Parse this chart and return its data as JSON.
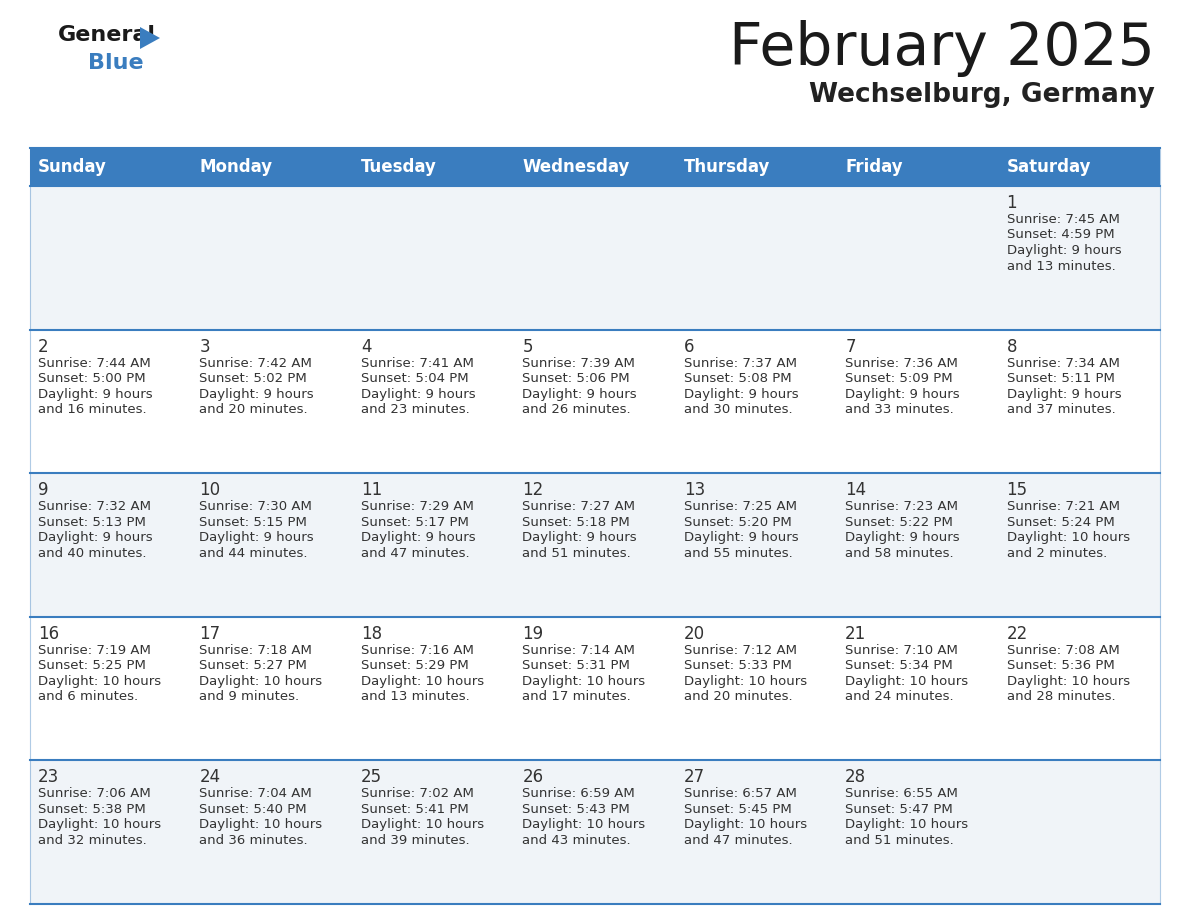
{
  "title": "February 2025",
  "subtitle": "Wechselburg, Germany",
  "header_color": "#3a7dbf",
  "header_text_color": "#ffffff",
  "cell_bg_even": "#f0f4f8",
  "cell_bg_odd": "#ffffff",
  "day_headers": [
    "Sunday",
    "Monday",
    "Tuesday",
    "Wednesday",
    "Thursday",
    "Friday",
    "Saturday"
  ],
  "title_color": "#1a1a1a",
  "subtitle_color": "#222222",
  "line_color": "#3a7dbf",
  "text_color": "#333333",
  "days": [
    {
      "day": 1,
      "col": 6,
      "row": 0,
      "sunrise": "7:45 AM",
      "sunset": "4:59 PM",
      "daylight": "9 hours and 13 minutes."
    },
    {
      "day": 2,
      "col": 0,
      "row": 1,
      "sunrise": "7:44 AM",
      "sunset": "5:00 PM",
      "daylight": "9 hours and 16 minutes."
    },
    {
      "day": 3,
      "col": 1,
      "row": 1,
      "sunrise": "7:42 AM",
      "sunset": "5:02 PM",
      "daylight": "9 hours and 20 minutes."
    },
    {
      "day": 4,
      "col": 2,
      "row": 1,
      "sunrise": "7:41 AM",
      "sunset": "5:04 PM",
      "daylight": "9 hours and 23 minutes."
    },
    {
      "day": 5,
      "col": 3,
      "row": 1,
      "sunrise": "7:39 AM",
      "sunset": "5:06 PM",
      "daylight": "9 hours and 26 minutes."
    },
    {
      "day": 6,
      "col": 4,
      "row": 1,
      "sunrise": "7:37 AM",
      "sunset": "5:08 PM",
      "daylight": "9 hours and 30 minutes."
    },
    {
      "day": 7,
      "col": 5,
      "row": 1,
      "sunrise": "7:36 AM",
      "sunset": "5:09 PM",
      "daylight": "9 hours and 33 minutes."
    },
    {
      "day": 8,
      "col": 6,
      "row": 1,
      "sunrise": "7:34 AM",
      "sunset": "5:11 PM",
      "daylight": "9 hours and 37 minutes."
    },
    {
      "day": 9,
      "col": 0,
      "row": 2,
      "sunrise": "7:32 AM",
      "sunset": "5:13 PM",
      "daylight": "9 hours and 40 minutes."
    },
    {
      "day": 10,
      "col": 1,
      "row": 2,
      "sunrise": "7:30 AM",
      "sunset": "5:15 PM",
      "daylight": "9 hours and 44 minutes."
    },
    {
      "day": 11,
      "col": 2,
      "row": 2,
      "sunrise": "7:29 AM",
      "sunset": "5:17 PM",
      "daylight": "9 hours and 47 minutes."
    },
    {
      "day": 12,
      "col": 3,
      "row": 2,
      "sunrise": "7:27 AM",
      "sunset": "5:18 PM",
      "daylight": "9 hours and 51 minutes."
    },
    {
      "day": 13,
      "col": 4,
      "row": 2,
      "sunrise": "7:25 AM",
      "sunset": "5:20 PM",
      "daylight": "9 hours and 55 minutes."
    },
    {
      "day": 14,
      "col": 5,
      "row": 2,
      "sunrise": "7:23 AM",
      "sunset": "5:22 PM",
      "daylight": "9 hours and 58 minutes."
    },
    {
      "day": 15,
      "col": 6,
      "row": 2,
      "sunrise": "7:21 AM",
      "sunset": "5:24 PM",
      "daylight": "10 hours and 2 minutes."
    },
    {
      "day": 16,
      "col": 0,
      "row": 3,
      "sunrise": "7:19 AM",
      "sunset": "5:25 PM",
      "daylight": "10 hours and 6 minutes."
    },
    {
      "day": 17,
      "col": 1,
      "row": 3,
      "sunrise": "7:18 AM",
      "sunset": "5:27 PM",
      "daylight": "10 hours and 9 minutes."
    },
    {
      "day": 18,
      "col": 2,
      "row": 3,
      "sunrise": "7:16 AM",
      "sunset": "5:29 PM",
      "daylight": "10 hours and 13 minutes."
    },
    {
      "day": 19,
      "col": 3,
      "row": 3,
      "sunrise": "7:14 AM",
      "sunset": "5:31 PM",
      "daylight": "10 hours and 17 minutes."
    },
    {
      "day": 20,
      "col": 4,
      "row": 3,
      "sunrise": "7:12 AM",
      "sunset": "5:33 PM",
      "daylight": "10 hours and 20 minutes."
    },
    {
      "day": 21,
      "col": 5,
      "row": 3,
      "sunrise": "7:10 AM",
      "sunset": "5:34 PM",
      "daylight": "10 hours and 24 minutes."
    },
    {
      "day": 22,
      "col": 6,
      "row": 3,
      "sunrise": "7:08 AM",
      "sunset": "5:36 PM",
      "daylight": "10 hours and 28 minutes."
    },
    {
      "day": 23,
      "col": 0,
      "row": 4,
      "sunrise": "7:06 AM",
      "sunset": "5:38 PM",
      "daylight": "10 hours and 32 minutes."
    },
    {
      "day": 24,
      "col": 1,
      "row": 4,
      "sunrise": "7:04 AM",
      "sunset": "5:40 PM",
      "daylight": "10 hours and 36 minutes."
    },
    {
      "day": 25,
      "col": 2,
      "row": 4,
      "sunrise": "7:02 AM",
      "sunset": "5:41 PM",
      "daylight": "10 hours and 39 minutes."
    },
    {
      "day": 26,
      "col": 3,
      "row": 4,
      "sunrise": "6:59 AM",
      "sunset": "5:43 PM",
      "daylight": "10 hours and 43 minutes."
    },
    {
      "day": 27,
      "col": 4,
      "row": 4,
      "sunrise": "6:57 AM",
      "sunset": "5:45 PM",
      "daylight": "10 hours and 47 minutes."
    },
    {
      "day": 28,
      "col": 5,
      "row": 4,
      "sunrise": "6:55 AM",
      "sunset": "5:47 PM",
      "daylight": "10 hours and 51 minutes."
    }
  ]
}
